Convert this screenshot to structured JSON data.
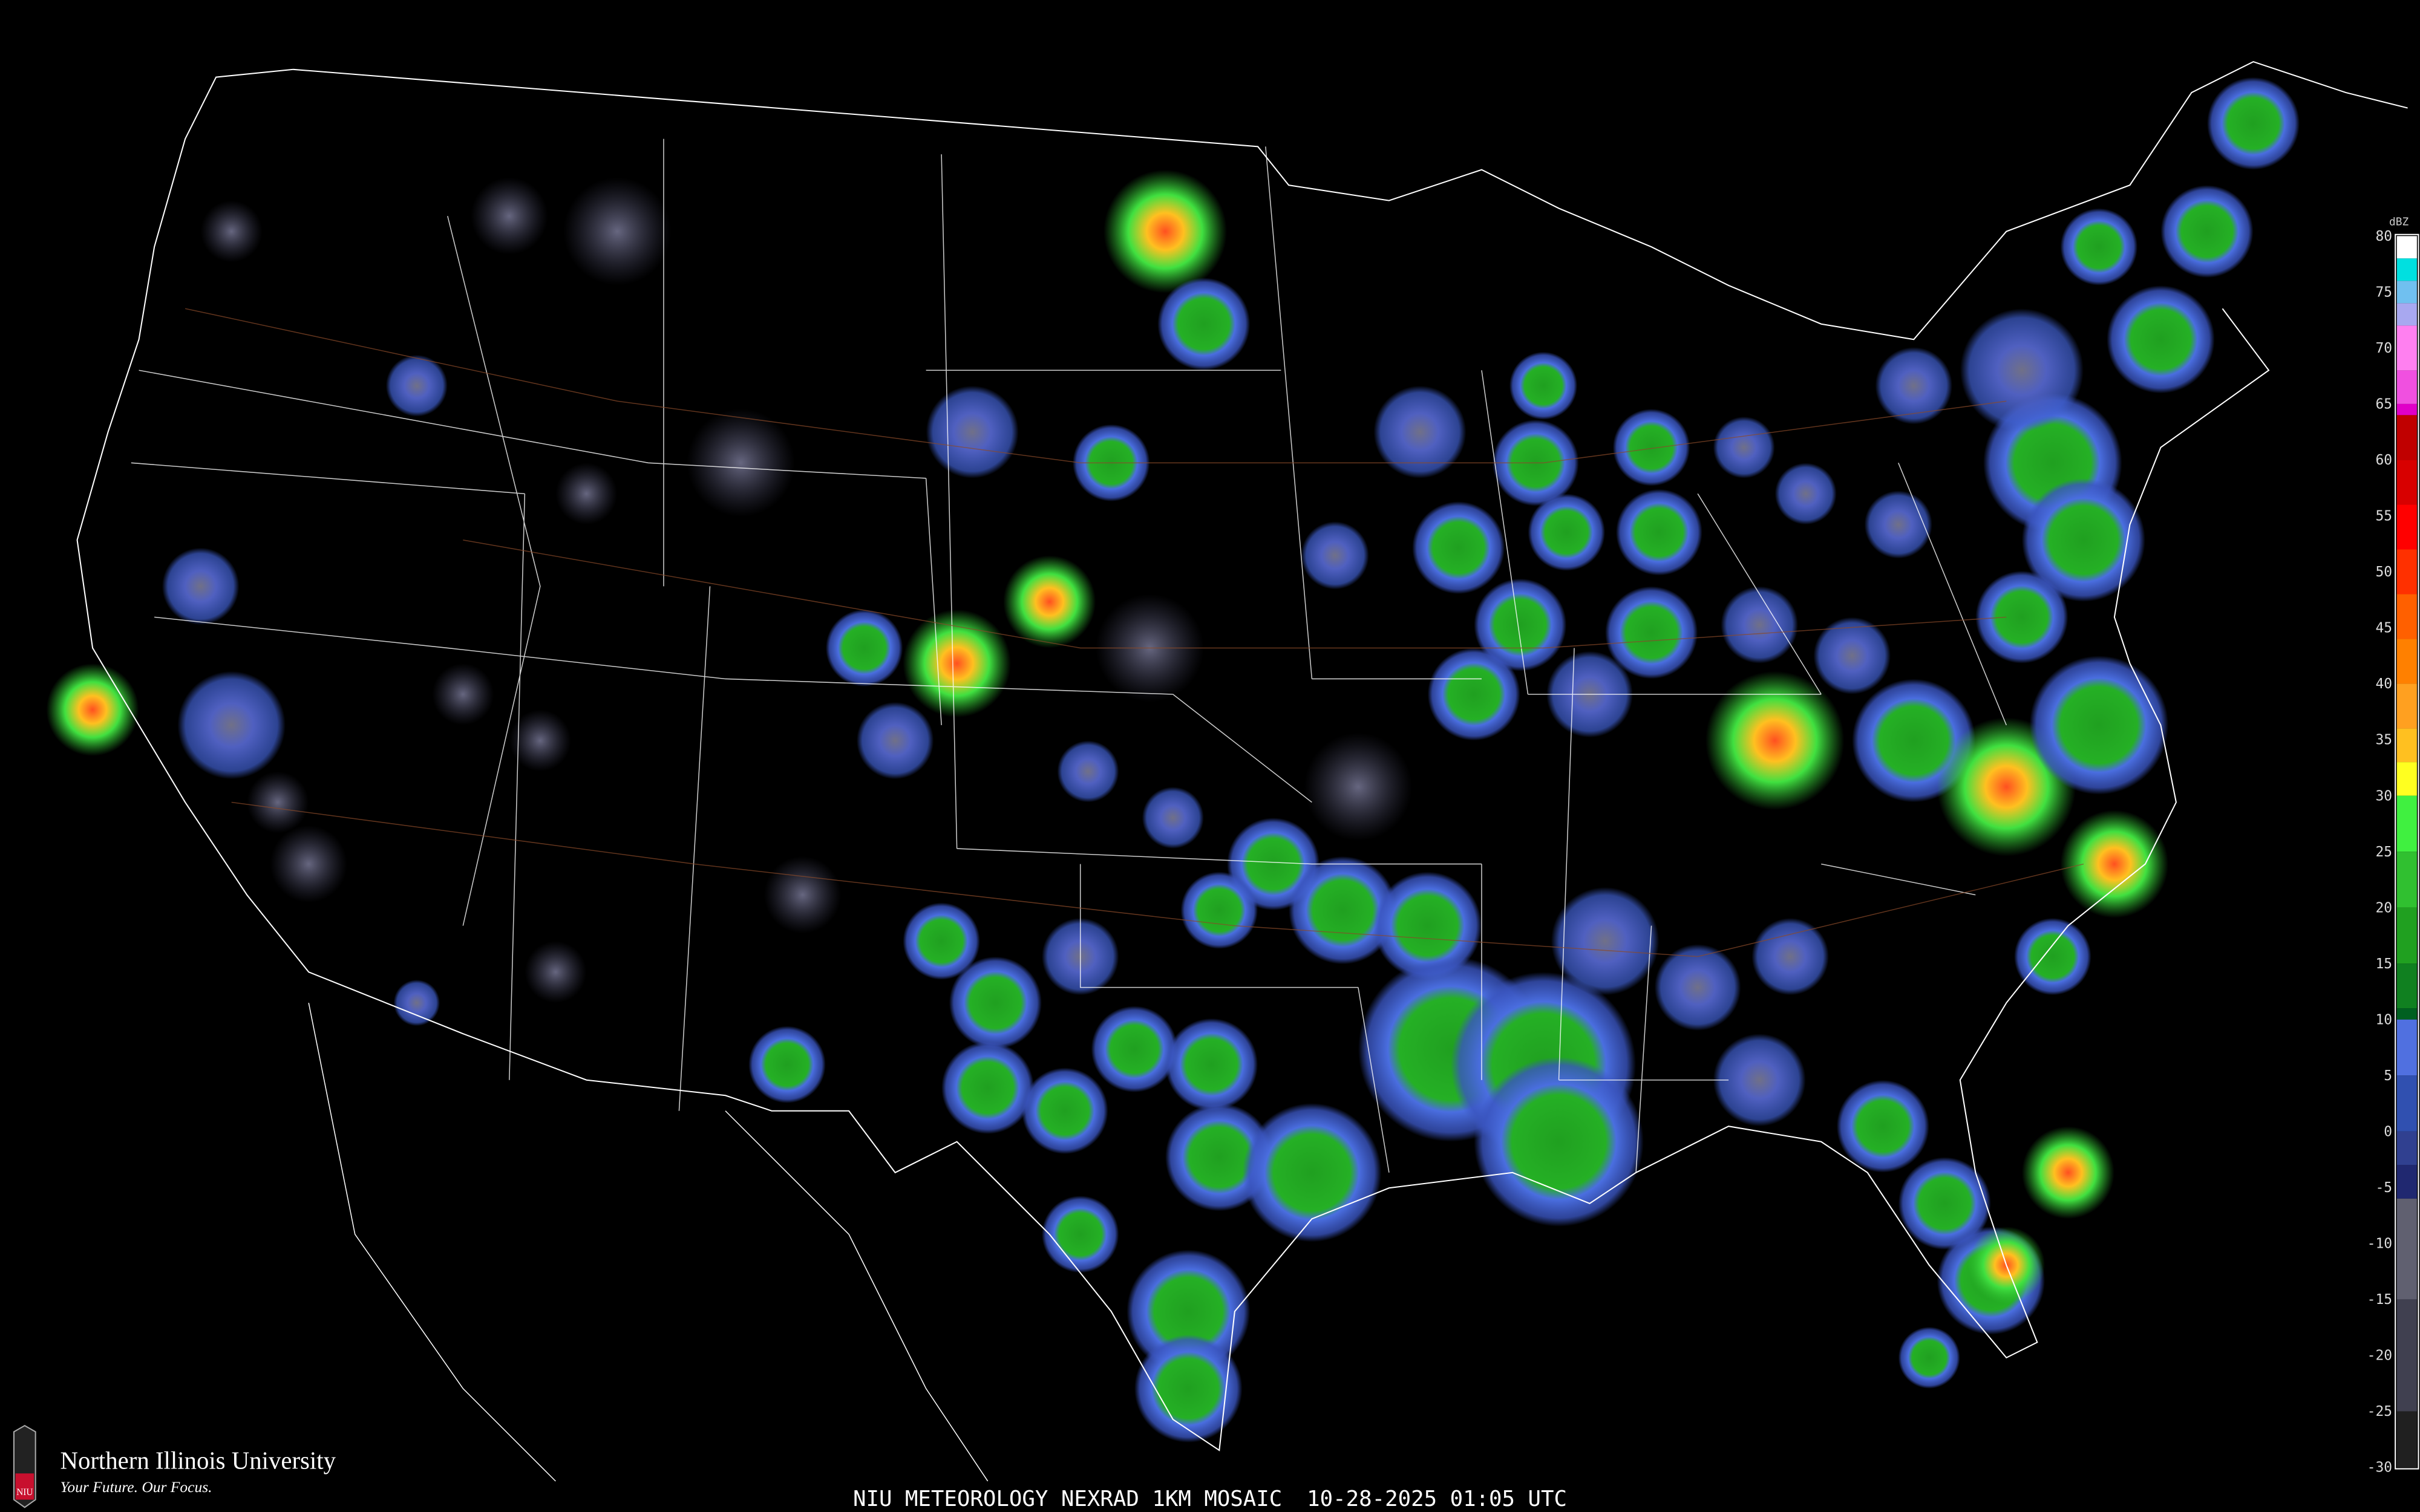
{
  "title": "NIU METEOROLOGY NEXRAD 1KM MOSAIC",
  "timestamp": "10-28-2025 01:05 UTC",
  "logo": {
    "name": "Northern Illinois University",
    "tagline": "Your Future. Our Focus.",
    "badge": "NIU",
    "badge_color": "#c8102e"
  },
  "legend": {
    "unit": "dBZ",
    "labels": [
      "80",
      "75",
      "70",
      "65",
      "60",
      "55",
      "50",
      "45",
      "40",
      "35",
      "30",
      "25",
      "20",
      "15",
      "10",
      "5",
      "0",
      "-5",
      "-10",
      "-15",
      "-20",
      "-25",
      "-30"
    ],
    "colorscale": [
      {
        "dbz": 80,
        "color": "#ffffff"
      },
      {
        "dbz": 78,
        "color": "#00e0e0"
      },
      {
        "dbz": 76,
        "color": "#70c0f0"
      },
      {
        "dbz": 74,
        "color": "#a8a8f0"
      },
      {
        "dbz": 72,
        "color": "#ff80f0"
      },
      {
        "dbz": 68,
        "color": "#f050e0"
      },
      {
        "dbz": 65,
        "color": "#e000c8"
      },
      {
        "dbz": 64,
        "color": "#c00000"
      },
      {
        "dbz": 60,
        "color": "#d80000"
      },
      {
        "dbz": 56,
        "color": "#ff0000"
      },
      {
        "dbz": 52,
        "color": "#ff3000"
      },
      {
        "dbz": 48,
        "color": "#ff6000"
      },
      {
        "dbz": 44,
        "color": "#ff8000"
      },
      {
        "dbz": 40,
        "color": "#ffa020"
      },
      {
        "dbz": 36,
        "color": "#ffc020"
      },
      {
        "dbz": 33,
        "color": "#ffff20"
      },
      {
        "dbz": 30,
        "color": "#40f040"
      },
      {
        "dbz": 25,
        "color": "#30c030"
      },
      {
        "dbz": 20,
        "color": "#20a020"
      },
      {
        "dbz": 15,
        "color": "#108020"
      },
      {
        "dbz": 11,
        "color": "#006020"
      },
      {
        "dbz": 10,
        "color": "#5070e0"
      },
      {
        "dbz": 5,
        "color": "#3050b0"
      },
      {
        "dbz": 0,
        "color": "#304090"
      },
      {
        "dbz": -3,
        "color": "#202870"
      },
      {
        "dbz": -6,
        "color": "#606070"
      },
      {
        "dbz": -15,
        "color": "#404050"
      },
      {
        "dbz": -25,
        "color": "#202020"
      },
      {
        "dbz": -30,
        "color": "#101010"
      }
    ]
  },
  "colors": {
    "background": "#000000",
    "borders": "#ffffff",
    "highways": "#8a4a2a",
    "light_echo": "#5070e0",
    "moderate_echo": "#20a020",
    "heavy_echo": "#ffa020",
    "clutter": "#707080"
  }
}
